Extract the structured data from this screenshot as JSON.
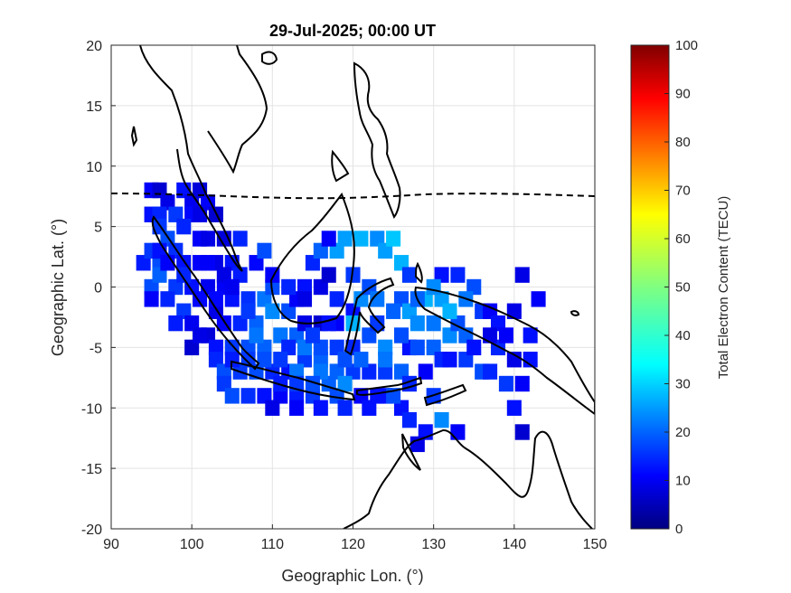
{
  "chart_data": {
    "type": "heatmap",
    "title": "29-Jul-2025; 00:00 UT",
    "xlabel": "Geographic Lon. (°)",
    "ylabel": "Geographic Lat. (°)",
    "xlim": [
      90,
      150
    ],
    "ylim": [
      -20,
      20
    ],
    "xticks": [
      90,
      100,
      110,
      120,
      130,
      140,
      150
    ],
    "yticks": [
      -20,
      -15,
      -10,
      -5,
      0,
      5,
      10,
      15,
      20
    ],
    "grid": true,
    "colormap": "jet",
    "colorbar": {
      "label": "Total Electron Content (TECU)",
      "range": [
        0,
        100
      ],
      "ticks": [
        0,
        10,
        20,
        30,
        40,
        50,
        60,
        70,
        80,
        90,
        100
      ]
    },
    "magnetic_equator_lat_approx": 7.5,
    "tec_cells": [
      [
        95,
        8,
        12
      ],
      [
        96,
        8,
        8
      ],
      [
        97,
        7,
        10
      ],
      [
        99,
        8,
        14
      ],
      [
        100,
        7,
        11
      ],
      [
        101,
        8,
        9
      ],
      [
        102,
        7,
        12
      ],
      [
        95,
        6,
        14
      ],
      [
        96,
        6,
        16
      ],
      [
        98,
        6,
        18
      ],
      [
        100,
        6,
        13
      ],
      [
        101,
        6,
        10
      ],
      [
        103,
        6,
        8
      ],
      [
        96,
        5,
        18
      ],
      [
        97,
        4,
        20
      ],
      [
        99,
        5,
        16
      ],
      [
        101,
        4,
        12
      ],
      [
        102,
        4,
        10
      ],
      [
        104,
        4,
        9
      ],
      [
        94,
        2,
        15
      ],
      [
        95,
        3,
        18
      ],
      [
        96,
        2,
        20
      ],
      [
        98,
        3,
        17
      ],
      [
        99,
        2,
        14
      ],
      [
        101,
        2,
        12
      ],
      [
        103,
        2,
        10
      ],
      [
        105,
        2,
        14
      ],
      [
        106,
        4,
        16
      ],
      [
        95,
        0,
        20
      ],
      [
        96,
        1,
        22
      ],
      [
        98,
        0,
        18
      ],
      [
        100,
        0,
        14
      ],
      [
        102,
        0,
        11
      ],
      [
        104,
        0,
        12
      ],
      [
        106,
        1,
        15
      ],
      [
        108,
        2,
        13
      ],
      [
        109,
        3,
        20
      ],
      [
        95,
        -1,
        12
      ],
      [
        97,
        -1,
        16
      ],
      [
        99,
        -2,
        18
      ],
      [
        101,
        -1,
        13
      ],
      [
        103,
        -2,
        10
      ],
      [
        105,
        -1,
        14
      ],
      [
        107,
        -1,
        17
      ],
      [
        109,
        -1,
        24
      ],
      [
        110,
        0,
        20
      ],
      [
        98,
        -3,
        15
      ],
      [
        100,
        -3,
        11
      ],
      [
        102,
        -4,
        9
      ],
      [
        104,
        -3,
        12
      ],
      [
        106,
        -3,
        16
      ],
      [
        108,
        -3,
        22
      ],
      [
        110,
        -2,
        26
      ],
      [
        112,
        -2,
        20
      ],
      [
        100,
        -5,
        8
      ],
      [
        101,
        -4,
        10
      ],
      [
        103,
        -5,
        14
      ],
      [
        105,
        -5,
        18
      ],
      [
        107,
        -5,
        20
      ],
      [
        109,
        -5,
        22
      ],
      [
        111,
        -4,
        24
      ],
      [
        113,
        -4,
        22
      ],
      [
        103,
        -6,
        16
      ],
      [
        104,
        -7,
        20
      ],
      [
        106,
        -7,
        18
      ],
      [
        108,
        -7,
        20
      ],
      [
        110,
        -7,
        16
      ],
      [
        112,
        -7,
        14
      ],
      [
        114,
        -6,
        18
      ],
      [
        116,
        -6,
        22
      ],
      [
        104,
        -8,
        18
      ],
      [
        105,
        -9,
        20
      ],
      [
        107,
        -9,
        17
      ],
      [
        109,
        -9,
        14
      ],
      [
        111,
        -9,
        12
      ],
      [
        113,
        -9,
        15
      ],
      [
        115,
        -9,
        18
      ],
      [
        117,
        -8,
        22
      ],
      [
        110,
        -10,
        10
      ],
      [
        113,
        -10,
        12
      ],
      [
        116,
        -10,
        14
      ],
      [
        118,
        -9,
        20
      ],
      [
        119,
        -10,
        16
      ],
      [
        121,
        -9,
        12
      ],
      [
        123,
        -9,
        14
      ],
      [
        113,
        -1,
        12
      ],
      [
        114,
        0,
        14
      ],
      [
        116,
        0,
        10
      ],
      [
        117,
        1,
        8
      ],
      [
        115,
        2,
        16
      ],
      [
        116,
        3,
        22
      ],
      [
        118,
        3,
        28
      ],
      [
        117,
        4,
        12
      ],
      [
        114,
        -3,
        10
      ],
      [
        116,
        -3,
        8
      ],
      [
        118,
        -3,
        12
      ],
      [
        120,
        -2,
        14
      ],
      [
        121,
        -1,
        26
      ],
      [
        122,
        0,
        20
      ],
      [
        120,
        1,
        18
      ],
      [
        119,
        4,
        28
      ],
      [
        112,
        -5,
        16
      ],
      [
        114,
        -5,
        24
      ],
      [
        116,
        -5,
        20
      ],
      [
        118,
        -5,
        18
      ],
      [
        120,
        -5,
        16
      ],
      [
        122,
        -4,
        20
      ],
      [
        124,
        -5,
        26
      ],
      [
        116,
        -7,
        24
      ],
      [
        118,
        -7,
        22
      ],
      [
        120,
        -7,
        18
      ],
      [
        122,
        -7,
        16
      ],
      [
        124,
        -7,
        18
      ],
      [
        126,
        -7,
        22
      ],
      [
        127,
        -5,
        14
      ],
      [
        121,
        4,
        30
      ],
      [
        123,
        4,
        26
      ],
      [
        124,
        3,
        28
      ],
      [
        125,
        4,
        32
      ],
      [
        126,
        2,
        30
      ],
      [
        127,
        1,
        18
      ],
      [
        126,
        -1,
        20
      ],
      [
        123,
        -1,
        24
      ],
      [
        125,
        -2,
        22
      ],
      [
        127,
        -2,
        28
      ],
      [
        128,
        -3,
        26
      ],
      [
        129,
        -1,
        30
      ],
      [
        130,
        -3,
        24
      ],
      [
        131,
        -1,
        28
      ],
      [
        128,
        -5,
        20
      ],
      [
        130,
        -5,
        22
      ],
      [
        132,
        -4,
        26
      ],
      [
        133,
        -3,
        20
      ],
      [
        131,
        -6,
        16
      ],
      [
        129,
        -7,
        12
      ],
      [
        127,
        -8,
        16
      ],
      [
        131,
        1,
        14
      ],
      [
        133,
        1,
        16
      ],
      [
        135,
        0,
        20
      ],
      [
        134,
        -1,
        24
      ],
      [
        136,
        -2,
        18
      ],
      [
        137,
        -2,
        12
      ],
      [
        138,
        -3,
        14
      ],
      [
        140,
        -2,
        10
      ],
      [
        132,
        -6,
        14
      ],
      [
        134,
        -6,
        18
      ],
      [
        136,
        -7,
        20
      ],
      [
        138,
        -5,
        16
      ],
      [
        139,
        -4,
        12
      ],
      [
        140,
        -6,
        10
      ],
      [
        142,
        -4,
        14
      ],
      [
        126,
        -10,
        14
      ],
      [
        127,
        -11,
        16
      ],
      [
        130,
        -9,
        18
      ],
      [
        131,
        -11,
        26
      ],
      [
        133,
        -12,
        12
      ],
      [
        129,
        -12,
        14
      ],
      [
        128,
        -13,
        10
      ],
      [
        137,
        -7,
        16
      ],
      [
        139,
        -8,
        18
      ],
      [
        141,
        -8,
        12
      ],
      [
        142,
        -6,
        14
      ],
      [
        143,
        -1,
        12
      ],
      [
        141,
        1,
        10
      ],
      [
        140,
        -10,
        14
      ],
      [
        141,
        -12,
        8
      ],
      [
        120,
        -3,
        30
      ],
      [
        121,
        -6,
        22
      ],
      [
        119,
        -8,
        26
      ],
      [
        123,
        -3,
        18
      ],
      [
        124,
        -9,
        14
      ],
      [
        125,
        -9,
        20
      ],
      [
        122,
        -10,
        14
      ],
      [
        108,
        -4,
        24
      ],
      [
        111,
        -6,
        18
      ],
      [
        113,
        -7,
        24
      ],
      [
        115,
        -8,
        20
      ],
      [
        117,
        -3,
        14
      ],
      [
        114,
        -1,
        10
      ],
      [
        112,
        0,
        16
      ],
      [
        110,
        1,
        12
      ],
      [
        96,
        3,
        14
      ],
      [
        97,
        2,
        12
      ],
      [
        99,
        1,
        16
      ],
      [
        102,
        2,
        12
      ],
      [
        104,
        1,
        10
      ],
      [
        105,
        0,
        11
      ],
      [
        103,
        -1,
        13
      ],
      [
        107,
        -2,
        18
      ],
      [
        111,
        -8,
        15
      ],
      [
        113,
        -8,
        18
      ],
      [
        105,
        -6,
        15
      ],
      [
        107,
        -6,
        18
      ],
      [
        109,
        -6,
        20
      ],
      [
        115,
        -4,
        18
      ],
      [
        118,
        -1,
        16
      ],
      [
        119,
        -6,
        20
      ],
      [
        124,
        -6,
        24
      ],
      [
        126,
        -4,
        20
      ],
      [
        128,
        -1,
        22
      ],
      [
        130,
        0,
        26
      ],
      [
        132,
        -2,
        30
      ],
      [
        134,
        -4,
        22
      ],
      [
        135,
        -5,
        14
      ],
      [
        137,
        -4,
        10
      ]
    ]
  }
}
